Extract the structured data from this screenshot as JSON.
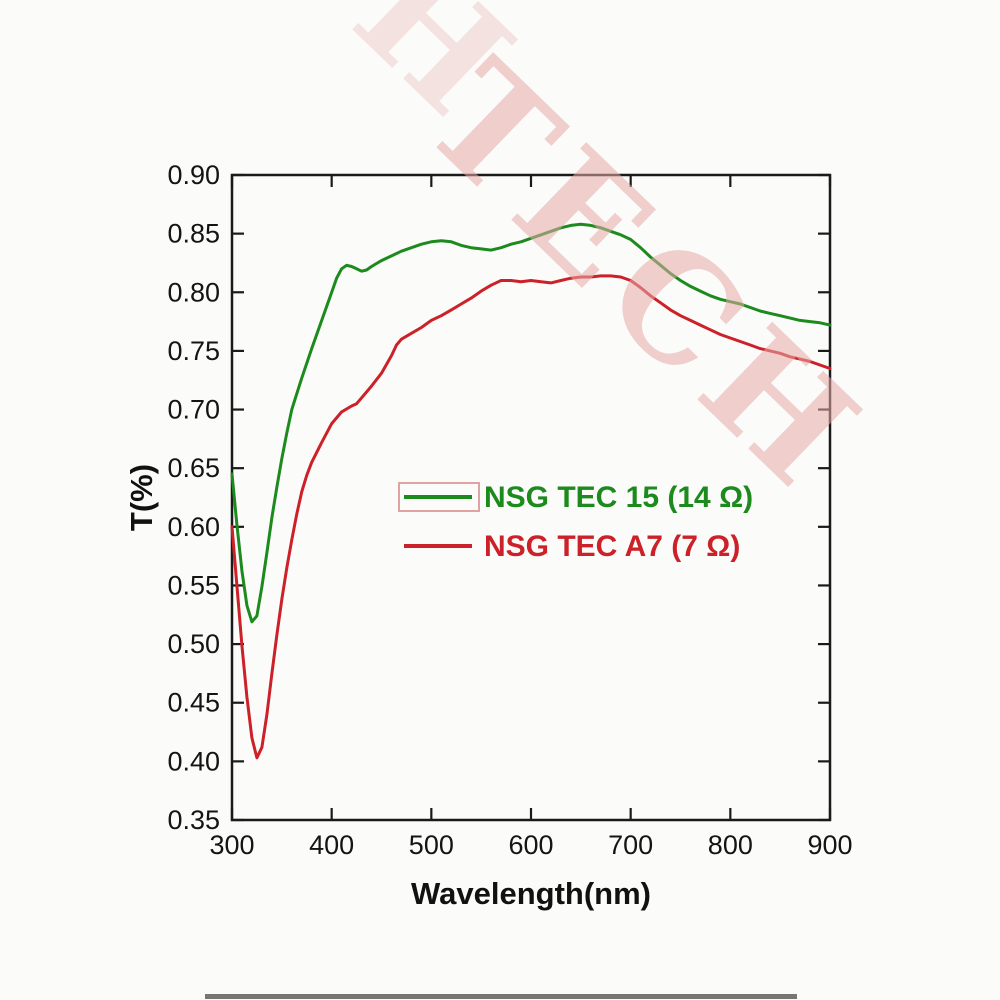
{
  "watermark": {
    "text": "TECH",
    "color": "#e6aaa8"
  },
  "chart_data": {
    "type": "line",
    "title": "",
    "xlabel": "Wavelength(nm)",
    "ylabel": "T(%)",
    "xlim": [
      300,
      900
    ],
    "ylim": [
      0.35,
      0.9
    ],
    "x_ticks": [
      300,
      400,
      500,
      600,
      700,
      800,
      900
    ],
    "y_ticks": [
      0.35,
      0.4,
      0.45,
      0.5,
      0.55,
      0.6,
      0.65,
      0.7,
      0.75,
      0.8,
      0.85,
      0.9
    ],
    "grid": false,
    "legend_position": "center",
    "axis_color": "#1a1a1a",
    "series": [
      {
        "name": "NSG TEC 15 (14 Ω)",
        "color": "#1c8a1c",
        "x": [
          300,
          305,
          310,
          315,
          320,
          325,
          330,
          335,
          340,
          345,
          350,
          355,
          360,
          370,
          380,
          390,
          400,
          405,
          410,
          415,
          420,
          425,
          430,
          435,
          440,
          450,
          460,
          470,
          480,
          490,
          500,
          510,
          520,
          530,
          540,
          550,
          560,
          570,
          580,
          590,
          600,
          610,
          620,
          630,
          640,
          650,
          660,
          670,
          680,
          690,
          700,
          710,
          720,
          730,
          740,
          750,
          760,
          770,
          780,
          790,
          800,
          810,
          820,
          830,
          840,
          850,
          860,
          870,
          880,
          890,
          900
        ],
        "y": [
          0.645,
          0.601,
          0.562,
          0.533,
          0.519,
          0.524,
          0.549,
          0.578,
          0.608,
          0.634,
          0.658,
          0.68,
          0.7,
          0.727,
          0.752,
          0.776,
          0.8,
          0.812,
          0.82,
          0.823,
          0.822,
          0.82,
          0.818,
          0.819,
          0.822,
          0.827,
          0.831,
          0.835,
          0.838,
          0.841,
          0.843,
          0.844,
          0.843,
          0.84,
          0.838,
          0.837,
          0.836,
          0.838,
          0.841,
          0.843,
          0.846,
          0.849,
          0.852,
          0.855,
          0.857,
          0.858,
          0.857,
          0.855,
          0.852,
          0.849,
          0.845,
          0.838,
          0.83,
          0.823,
          0.816,
          0.81,
          0.805,
          0.801,
          0.797,
          0.794,
          0.792,
          0.79,
          0.787,
          0.784,
          0.782,
          0.78,
          0.778,
          0.776,
          0.775,
          0.774,
          0.772
        ]
      },
      {
        "name": "NSG TEC A7 (7 Ω)",
        "color": "#cc2128",
        "x": [
          300,
          305,
          310,
          315,
          320,
          325,
          330,
          335,
          340,
          345,
          350,
          355,
          360,
          365,
          370,
          375,
          380,
          390,
          400,
          410,
          420,
          425,
          430,
          440,
          450,
          460,
          465,
          470,
          480,
          490,
          500,
          510,
          520,
          530,
          540,
          550,
          560,
          570,
          580,
          590,
          600,
          610,
          620,
          630,
          640,
          650,
          660,
          670,
          680,
          690,
          700,
          710,
          720,
          730,
          740,
          750,
          760,
          770,
          780,
          790,
          800,
          810,
          820,
          830,
          840,
          850,
          860,
          870,
          880,
          890,
          900
        ],
        "y": [
          0.6,
          0.549,
          0.498,
          0.455,
          0.42,
          0.403,
          0.412,
          0.44,
          0.475,
          0.508,
          0.538,
          0.565,
          0.589,
          0.611,
          0.63,
          0.644,
          0.655,
          0.672,
          0.688,
          0.698,
          0.703,
          0.705,
          0.71,
          0.72,
          0.731,
          0.746,
          0.755,
          0.76,
          0.765,
          0.77,
          0.776,
          0.78,
          0.785,
          0.79,
          0.795,
          0.801,
          0.806,
          0.81,
          0.81,
          0.809,
          0.81,
          0.809,
          0.808,
          0.81,
          0.812,
          0.813,
          0.813,
          0.814,
          0.814,
          0.813,
          0.81,
          0.804,
          0.797,
          0.791,
          0.785,
          0.78,
          0.776,
          0.772,
          0.768,
          0.764,
          0.761,
          0.758,
          0.755,
          0.752,
          0.75,
          0.748,
          0.745,
          0.743,
          0.741,
          0.738,
          0.735
        ]
      }
    ]
  }
}
